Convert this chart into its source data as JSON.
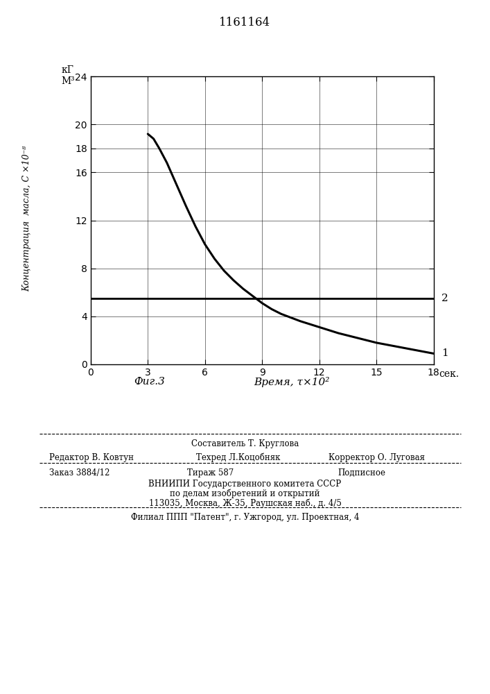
{
  "title": "1161164",
  "yticks": [
    0,
    4,
    8,
    12,
    16,
    18,
    20,
    24
  ],
  "xticks": [
    0,
    3,
    6,
    9,
    12,
    15,
    18
  ],
  "ylim": [
    0,
    24
  ],
  "xlim": [
    0,
    18
  ],
  "curve1_x": [
    3.0,
    3.3,
    3.6,
    4.0,
    4.5,
    5.0,
    5.5,
    6.0,
    6.5,
    7.0,
    7.5,
    8.0,
    8.5,
    9.0,
    9.5,
    10.0,
    10.5,
    11.0,
    12.0,
    13.0,
    14.0,
    15.0,
    16.0,
    17.0,
    18.0
  ],
  "curve1_y": [
    19.2,
    18.8,
    18.0,
    16.8,
    15.0,
    13.2,
    11.5,
    10.0,
    8.8,
    7.8,
    7.0,
    6.3,
    5.7,
    5.1,
    4.6,
    4.2,
    3.9,
    3.6,
    3.1,
    2.6,
    2.2,
    1.8,
    1.5,
    1.2,
    0.9
  ],
  "curve2_y": 5.5,
  "line_color": "#000000",
  "ylabel_units_1": "кГ",
  "ylabel_units_2": "М³",
  "ylabel_rotated": "Концентрация  масла, С ×10⁻⁸",
  "fig_label": "Фиг.3",
  "time_label": "Время, τ×10²",
  "unit_label": "сек.",
  "curve1_label": "1",
  "curve2_label": "2",
  "footer_sestavitel": "Составитель Т. Круглова",
  "footer_redaktor": "Редактор В. Ковтун",
  "footer_tekhred": "Техред Л.Коцобняк",
  "footer_korrektor": "Корректор О. Луговая",
  "footer_zakaz": "Заказ 3884/12",
  "footer_tirazh": "Тираж 587",
  "footer_podpisnoe": "Подписное",
  "footer_vniip1": "ВНИИПИ Государственного комитета СССР",
  "footer_vniip2": "по делам изобретений и открытий",
  "footer_vniip3": "113035, Москва, Ж-35, Раушская наб., д. 4/5",
  "footer_filial": "Филиал ППП \"Патент\", г. Ужгород, ул. Проектная, 4"
}
